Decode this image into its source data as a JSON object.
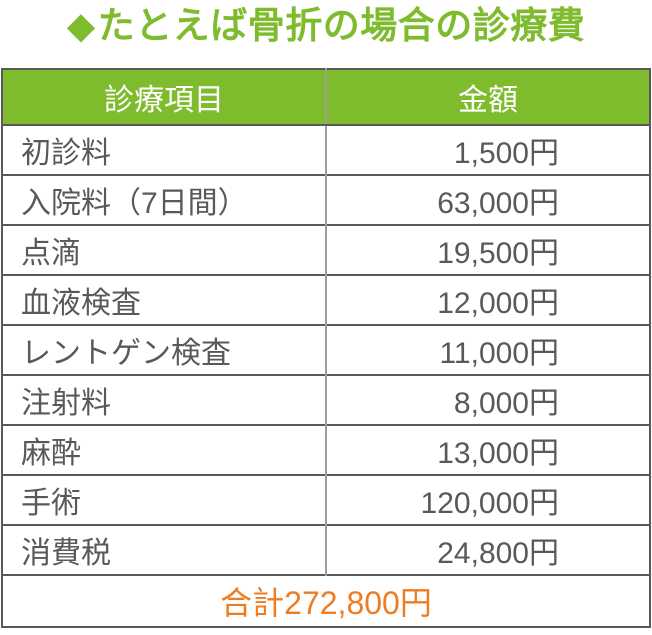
{
  "title": {
    "marker": "◆",
    "text": "たとえば骨折の場合の診療費"
  },
  "colors": {
    "green": "#7ebb2d",
    "orange": "#ed7d22",
    "text_gray": "#595959",
    "border_dark": "#595959",
    "border_light": "#9e9e9e",
    "header_text": "#ffffff",
    "background": "#ffffff"
  },
  "table": {
    "headers": [
      "診療項目",
      "金額"
    ],
    "rows": [
      {
        "item": "初診料",
        "amount": "1,500円"
      },
      {
        "item": "入院料（7日間）",
        "amount": "63,000円"
      },
      {
        "item": "点滴",
        "amount": "19,500円"
      },
      {
        "item": "血液検査",
        "amount": "12,000円"
      },
      {
        "item": "レントゲン検査",
        "amount": "11,000円"
      },
      {
        "item": "注射料",
        "amount": "8,000円"
      },
      {
        "item": "麻酔",
        "amount": "13,000円"
      },
      {
        "item": "手術",
        "amount": "120,000円"
      },
      {
        "item": "消費税",
        "amount": "24,800円"
      }
    ],
    "total": {
      "label": "合計",
      "value": "272,800円"
    }
  },
  "chart_data": {
    "type": "table",
    "title": "たとえば骨折の場合の診療費",
    "columns": [
      "診療項目",
      "金額"
    ],
    "categories": [
      "初診料",
      "入院料（7日間）",
      "点滴",
      "血液検査",
      "レントゲン検査",
      "注射料",
      "麻酔",
      "手術",
      "消費税"
    ],
    "values": [
      1500,
      63000,
      19500,
      12000,
      11000,
      8000,
      13000,
      120000,
      24800
    ],
    "unit": "円",
    "total": 272800
  }
}
